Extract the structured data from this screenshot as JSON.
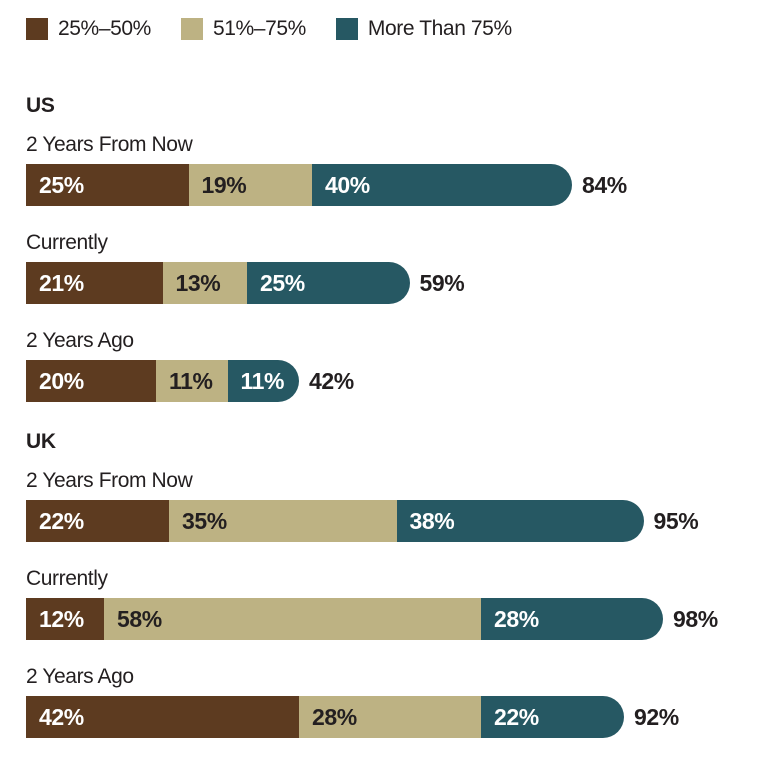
{
  "colors": {
    "brown": "#5D3B20",
    "tan": "#BDB283",
    "teal": "#265863",
    "text_dark": "#231F20",
    "text_light": "#FFFFFF",
    "background": "#FFFFFF"
  },
  "legend": {
    "items": [
      {
        "label": "25%–50%",
        "color": "#5D3B20"
      },
      {
        "label": "51%–75%",
        "color": "#BDB283"
      },
      {
        "label": "More Than 75%",
        "color": "#265863"
      }
    ]
  },
  "chart_data": {
    "type": "bar",
    "orientation": "horizontal",
    "stacked": true,
    "unit": "%",
    "xlim": [
      0,
      100
    ],
    "grid": false,
    "legend_position": "top",
    "categories": [
      "25%–50%",
      "51%–75%",
      "More Than 75%"
    ],
    "segment_colors": [
      "#5D3B20",
      "#BDB283",
      "#265863"
    ],
    "segment_text_colors": [
      "#FFFFFF",
      "#231F20",
      "#FFFFFF"
    ],
    "sections": [
      {
        "title": "US",
        "rows": [
          {
            "label": "2 Years From Now",
            "values": [
              25,
              19,
              40
            ],
            "total": 84
          },
          {
            "label": "Currently",
            "values": [
              21,
              13,
              25
            ],
            "total": 59
          },
          {
            "label": "2 Years Ago",
            "values": [
              20,
              11,
              11
            ],
            "total": 42
          }
        ]
      },
      {
        "title": "UK",
        "rows": [
          {
            "label": "2 Years From Now",
            "values": [
              22,
              35,
              38
            ],
            "total": 95
          },
          {
            "label": "Currently",
            "values": [
              12,
              58,
              28
            ],
            "total": 98
          },
          {
            "label": "2 Years Ago",
            "values": [
              42,
              28,
              22
            ],
            "total": 92
          }
        ]
      }
    ]
  }
}
